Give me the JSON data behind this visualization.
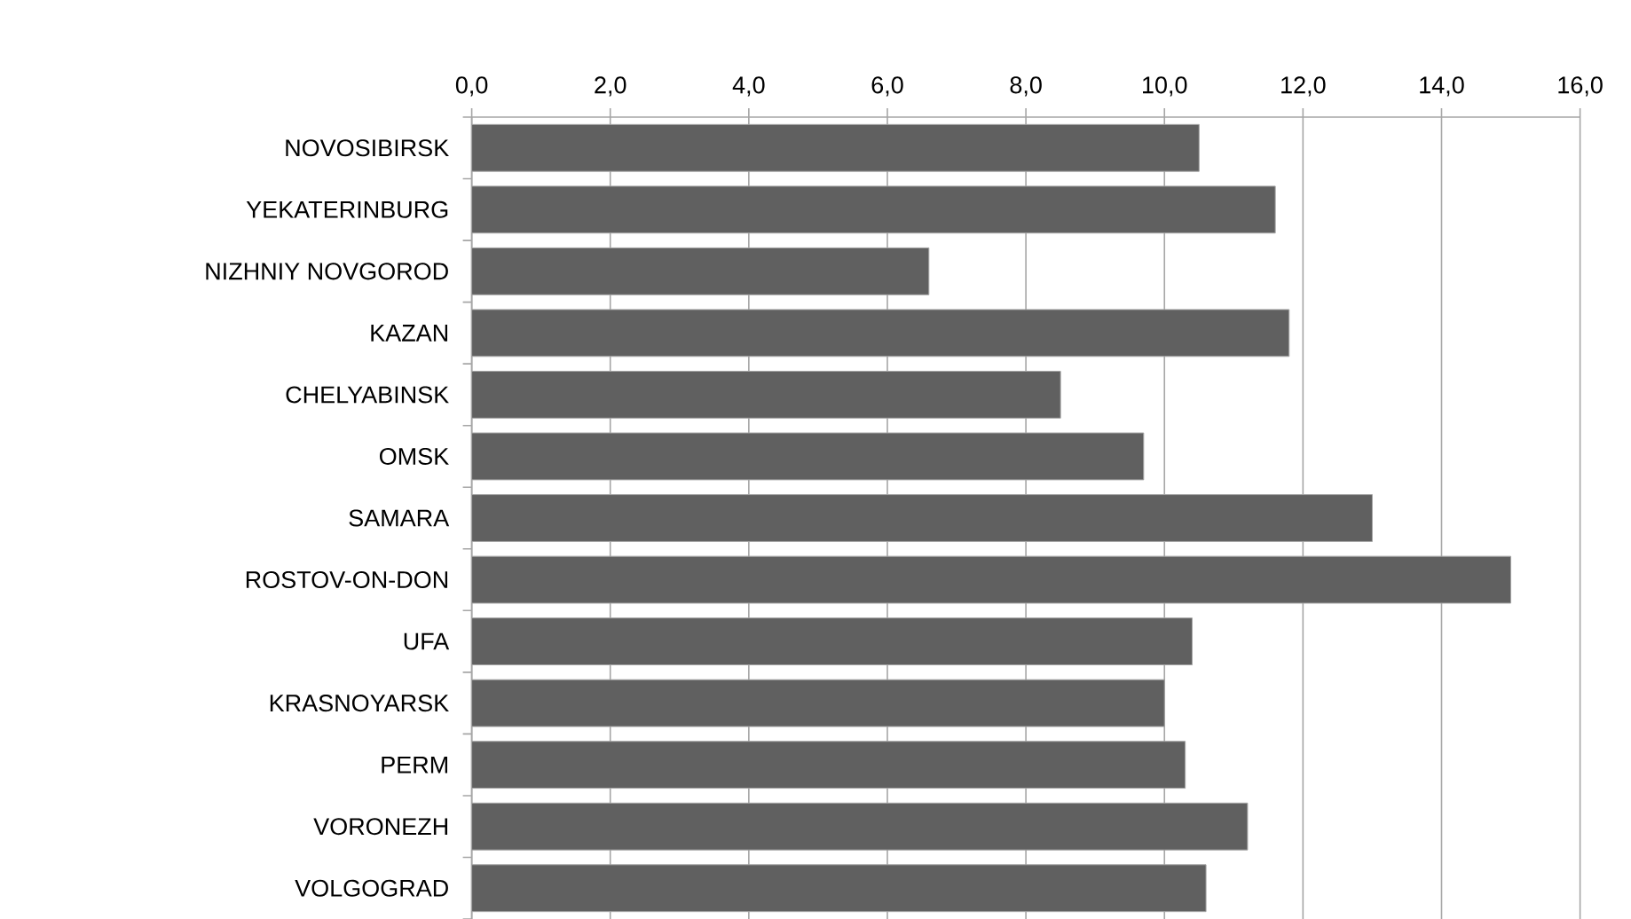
{
  "chart_data": {
    "type": "bar",
    "orientation": "horizontal",
    "categories": [
      "NOVOSIBIRSK",
      "YEKATERINBURG",
      "NIZHNIY NOVGOROD",
      "KAZAN",
      "CHELYABINSK",
      "OMSK",
      "SAMARA",
      "ROSTOV-ON-DON",
      "UFA",
      "KRASNOYARSK",
      "PERM",
      "VORONEZH",
      "VOLGOGRAD"
    ],
    "values": [
      10.5,
      11.6,
      6.6,
      11.8,
      8.5,
      9.7,
      13.0,
      15.0,
      10.4,
      10.0,
      10.3,
      11.2,
      10.6
    ],
    "color": "#606060",
    "xlim": [
      0,
      16
    ],
    "xticks": [
      {
        "value": 0,
        "label": "0,0"
      },
      {
        "value": 2,
        "label": "2,0"
      },
      {
        "value": 4,
        "label": "4,0"
      },
      {
        "value": 6,
        "label": "6,0"
      },
      {
        "value": 8,
        "label": "8,0"
      },
      {
        "value": 10,
        "label": "10,0"
      },
      {
        "value": 12,
        "label": "12,0"
      },
      {
        "value": 14,
        "label": "14,0"
      },
      {
        "value": 16,
        "label": "16,0"
      }
    ],
    "grid": "x"
  }
}
